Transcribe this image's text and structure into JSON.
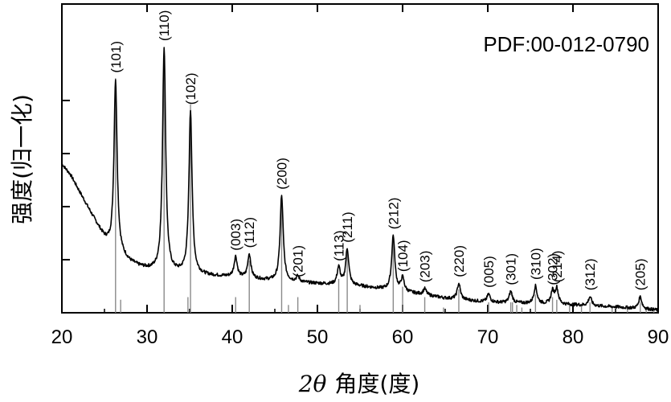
{
  "chart_data": {
    "type": "line",
    "xlabel_theta": "2θ",
    "xlabel_text": "角度(度)",
    "ylabel": "强度(归一化)",
    "reference_label": "PDF:00-012-0790",
    "xlim": [
      20,
      90
    ],
    "ylim": [
      0,
      1
    ],
    "x_ticks": [
      20,
      30,
      40,
      50,
      60,
      70,
      80,
      90
    ],
    "y_ticks": [
      0.2,
      0.4,
      0.6,
      0.8
    ],
    "grid": false,
    "baseline": [
      [
        20,
        0.56
      ],
      [
        21,
        0.52
      ],
      [
        22,
        0.46
      ],
      [
        23,
        0.4
      ],
      [
        24,
        0.34
      ],
      [
        25,
        0.28
      ],
      [
        25.8,
        0.245
      ],
      [
        27,
        0.215
      ],
      [
        28,
        0.19
      ],
      [
        29,
        0.175
      ],
      [
        30,
        0.165
      ],
      [
        31,
        0.158
      ],
      [
        33,
        0.15
      ],
      [
        35,
        0.145
      ],
      [
        37,
        0.14
      ],
      [
        40,
        0.135
      ],
      [
        45,
        0.12
      ],
      [
        50,
        0.11
      ],
      [
        55,
        0.1
      ],
      [
        60,
        0.08
      ],
      [
        65,
        0.055
      ],
      [
        70,
        0.04
      ],
      [
        75,
        0.035
      ],
      [
        80,
        0.03
      ],
      [
        85,
        0.022
      ],
      [
        88,
        0.015
      ],
      [
        90,
        0.01
      ]
    ],
    "peaks": [
      {
        "hkl": "(101)",
        "x": 26.3,
        "intensity": 0.88,
        "ref": 0.9
      },
      {
        "hkl": "(110)",
        "x": 32.0,
        "intensity": 1.0,
        "ref": 1.0
      },
      {
        "hkl": "(102)",
        "x": 35.1,
        "intensity": 0.76,
        "ref": 0.8
      },
      {
        "hkl": "(003)",
        "x": 40.4,
        "intensity": 0.21,
        "ref": 0.06
      },
      {
        "hkl": "(112)",
        "x": 42.0,
        "intensity": 0.22,
        "ref": 0.2
      },
      {
        "hkl": "(200)",
        "x": 45.8,
        "intensity": 0.44,
        "ref": 0.42
      },
      {
        "hkl": "(201)",
        "x": 47.7,
        "intensity": 0.11,
        "ref": 0.06
      },
      {
        "hkl": "(113)",
        "x": 52.5,
        "intensity": 0.17,
        "ref": 0.13
      },
      {
        "hkl": "(211)",
        "x": 53.5,
        "intensity": 0.24,
        "ref": 0.23
      },
      {
        "hkl": "(212)",
        "x": 58.9,
        "intensity": 0.29,
        "ref": 0.29
      },
      {
        "hkl": "(104)",
        "x": 60.0,
        "intensity": 0.13,
        "ref": 0.1
      },
      {
        "hkl": "(203)",
        "x": 62.6,
        "intensity": 0.09,
        "ref": 0.06
      },
      {
        "hkl": "(220)",
        "x": 66.6,
        "intensity": 0.11,
        "ref": 0.09
      },
      {
        "hkl": "(005)",
        "x": 70.1,
        "intensity": 0.07,
        "ref": 0.04
      },
      {
        "hkl": "(301)",
        "x": 72.7,
        "intensity": 0.08,
        "ref": 0.04
      },
      {
        "hkl": "(310)",
        "x": 75.6,
        "intensity": 0.1,
        "ref": 0.07
      },
      {
        "hkl": "(302)",
        "x": 77.6,
        "intensity": 0.08,
        "ref": 0.06
      },
      {
        "hkl": "(214)",
        "x": 78.1,
        "intensity": 0.09,
        "ref": 0.05
      },
      {
        "hkl": "(312)",
        "x": 82.0,
        "intensity": 0.06,
        "ref": 0.04
      },
      {
        "hkl": "(205)",
        "x": 87.9,
        "intensity": 0.06,
        "ref": 0.04
      }
    ],
    "minor_reference_lines": [
      {
        "x": 26.9,
        "ref": 0.05
      },
      {
        "x": 34.8,
        "ref": 0.06
      },
      {
        "x": 46.6,
        "ref": 0.03
      },
      {
        "x": 55.0,
        "ref": 0.03
      },
      {
        "x": 64.8,
        "ref": 0.02
      },
      {
        "x": 72.9,
        "ref": 0.04
      },
      {
        "x": 73.4,
        "ref": 0.03
      },
      {
        "x": 74.0,
        "ref": 0.02
      },
      {
        "x": 79.6,
        "ref": 0.03
      },
      {
        "x": 81.0,
        "ref": 0.03
      },
      {
        "x": 84.6,
        "ref": 0.02
      },
      {
        "x": 86.4,
        "ref": 0.02
      },
      {
        "x": 88.6,
        "ref": 0.02
      },
      {
        "x": 89.5,
        "ref": 0.02
      }
    ]
  }
}
